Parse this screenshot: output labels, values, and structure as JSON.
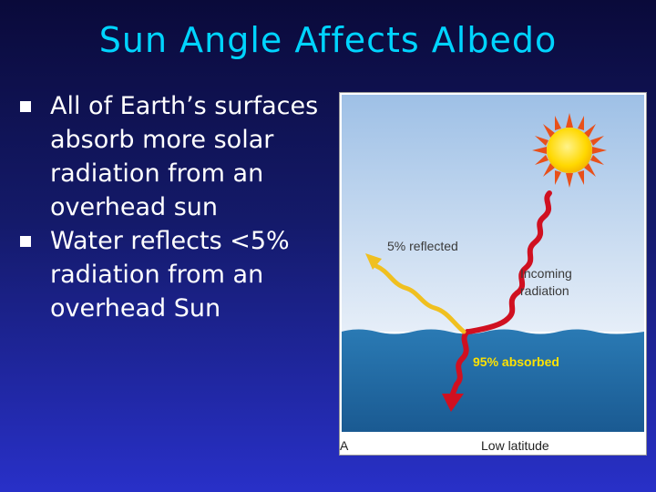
{
  "slide": {
    "title": "Sun Angle Affects Albedo",
    "bullets": [
      "All of Earth’s surfaces absorb more solar radiation from an overhead sun",
      "Water reflects <5% radiation from an overhead Sun"
    ]
  },
  "figure": {
    "reflected_label": "5% reflected",
    "incoming_label_line1": "Incoming",
    "incoming_label_line2": "radiation",
    "absorbed_label": "95% absorbed",
    "panel_letter": "A",
    "caption": "Low latitude"
  },
  "colors": {
    "title": "#00d4ff",
    "incoming_ray": "#d01020",
    "reflected_ray": "#f0c020",
    "water": "#1e6ea8",
    "sky": "#a8c8e8"
  },
  "icons": [
    "bullet-square-icon",
    "sun-icon"
  ]
}
